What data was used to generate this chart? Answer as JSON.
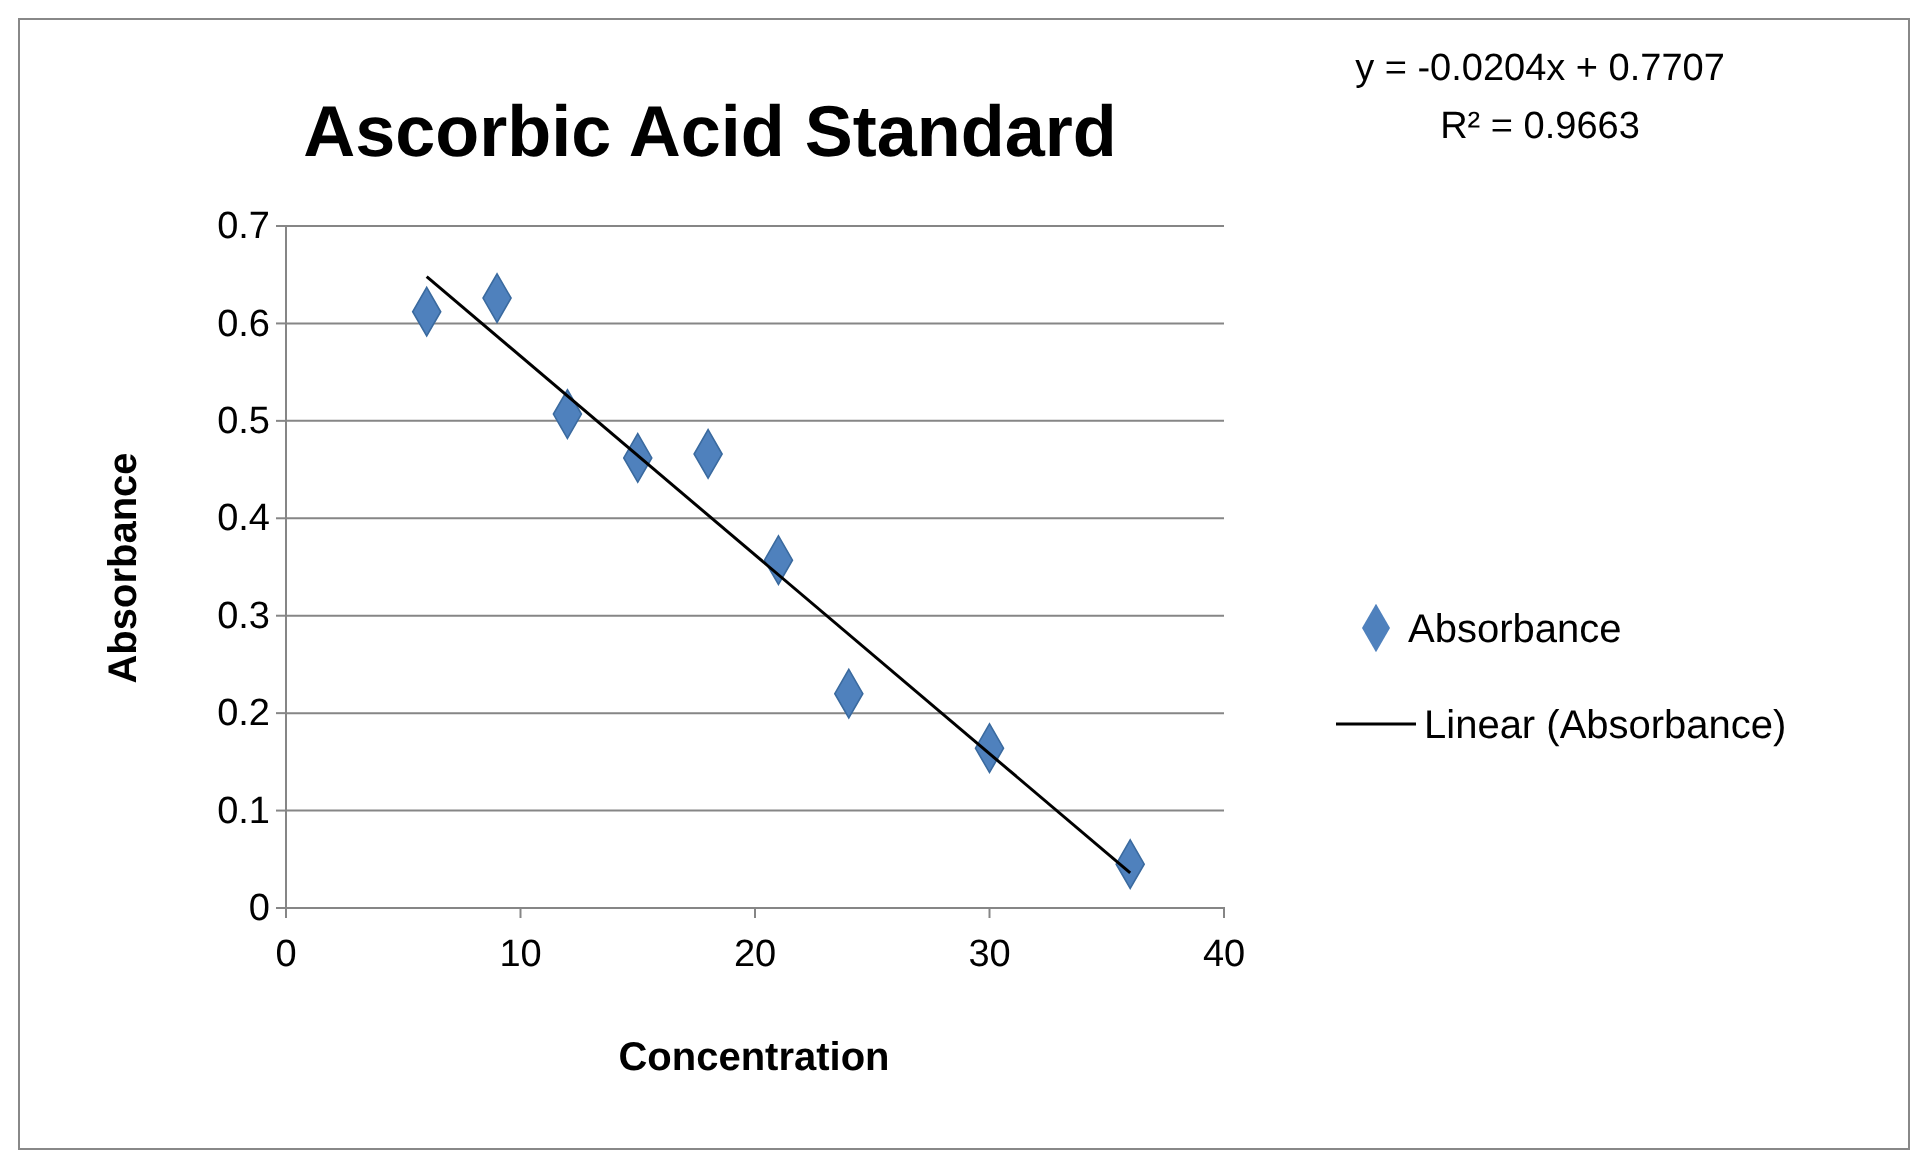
{
  "chart_data": {
    "type": "scatter",
    "title": "Ascorbic  Acid Standard",
    "xlabel": "Concentration",
    "ylabel": "Absorbance",
    "x": [
      6,
      9,
      12,
      15,
      18,
      21,
      24,
      30,
      36
    ],
    "series": [
      {
        "name": "Absorbance",
        "color": "#4f81bd",
        "marker": "diamond",
        "values": [
          0.612,
          0.626,
          0.507,
          0.462,
          0.466,
          0.357,
          0.22,
          0.164,
          0.045
        ]
      },
      {
        "name": "Linear (Absorbance)",
        "type": "line",
        "color": "#000000",
        "line_style": "solid",
        "x": [
          6,
          36
        ],
        "values": [
          0.648,
          0.036
        ]
      }
    ],
    "xlim": [
      0,
      40
    ],
    "xticks": [
      0,
      10,
      20,
      30,
      40
    ],
    "ylim": [
      0,
      0.7
    ],
    "yticks": [
      0,
      0.1,
      0.2,
      0.3,
      0.4,
      0.5,
      0.6,
      0.7
    ],
    "grid": "y",
    "legend": "right",
    "annotations": [
      "y = -0.0204x + 0.7707",
      "R² = 0.9663"
    ]
  }
}
